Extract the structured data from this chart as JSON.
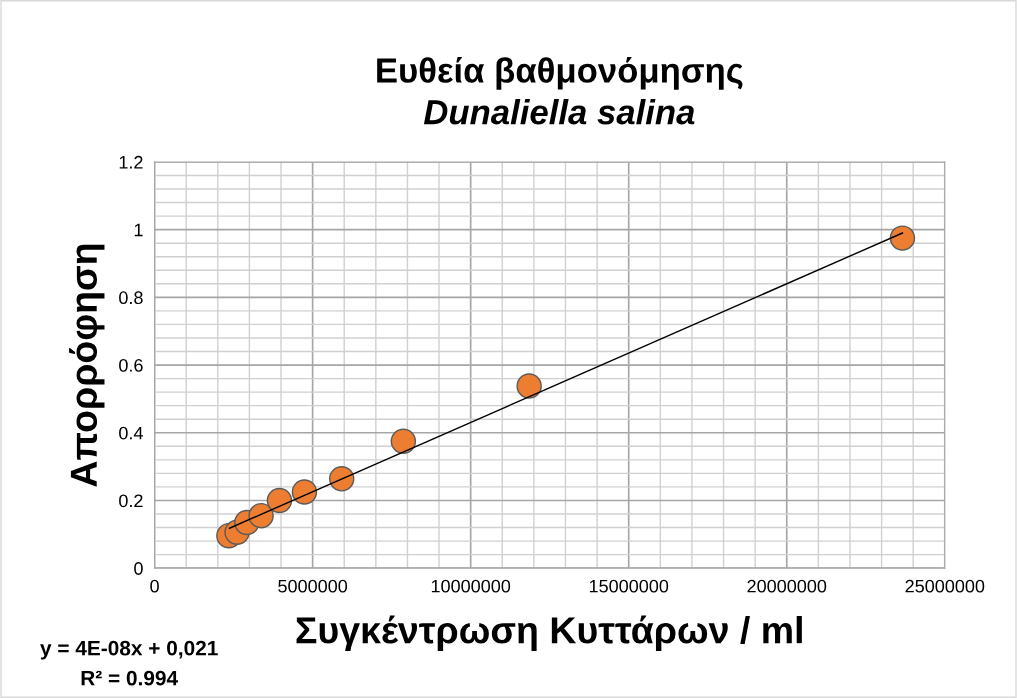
{
  "chart_data": {
    "type": "scatter",
    "title": "Ευθεία βαθμονόμησης",
    "subtitle": "Dunaliella salina",
    "xlabel": "Συγκέντρωση Κυττάρων / ml",
    "ylabel": "Απορρόφηση",
    "annotations": [
      "y = 4E-08x + 0,021",
      "R² = 0.994"
    ],
    "series": [
      {
        "color": "#ed7d31",
        "marker": "circle",
        "x": [
          2350000,
          2610000,
          2920000,
          3370000,
          3950000,
          4740000,
          5920000,
          7870000,
          11850000,
          23660000
        ],
        "values": [
          0.096,
          0.106,
          0.135,
          0.155,
          0.2,
          0.225,
          0.264,
          0.375,
          0.538,
          0.975
        ]
      },
      {
        "type": "line",
        "color": "#000000",
        "line_style": "solid",
        "x": [
          2370000,
          23660000
        ],
        "values": [
          0.118,
          0.99
        ]
      }
    ],
    "xlim": [
      0,
      25000000
    ],
    "xticks": [
      0,
      5000000,
      10000000,
      15000000,
      20000000,
      25000000
    ],
    "ylim": [
      0,
      1.2
    ],
    "yticks": [
      0,
      0.2,
      0.4,
      0.6,
      0.8,
      1,
      1.2
    ],
    "grid": true,
    "legend": false
  }
}
